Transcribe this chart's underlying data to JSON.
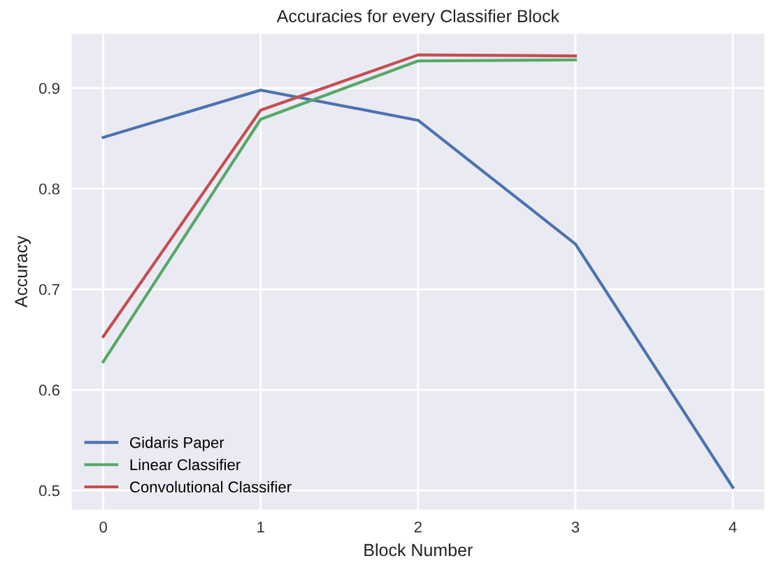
{
  "chart_data": {
    "type": "line",
    "title": "Accuracies for every Classifier Block",
    "xlabel": "Block Number",
    "ylabel": "Accuracy",
    "xlim": [
      -0.2,
      4.2
    ],
    "xticks": [
      0,
      1,
      2,
      3,
      4
    ],
    "ylim": [
      0.481,
      0.954
    ],
    "yticks": [
      0.5,
      0.6,
      0.7,
      0.8,
      0.9
    ],
    "grid": true,
    "legend": "bottom left",
    "marker": "none",
    "line_style": "solid",
    "series": [
      {
        "name": "Gidaris Paper",
        "color": "#4c72b0",
        "x": [
          0,
          1,
          2,
          3,
          4
        ],
        "values": [
          0.851,
          0.898,
          0.868,
          0.745,
          0.503
        ]
      },
      {
        "name": "Linear Classifier",
        "color": "#55a868",
        "x": [
          0,
          1,
          2,
          3
        ],
        "values": [
          0.628,
          0.869,
          0.927,
          0.928
        ]
      },
      {
        "name": "Convolutional Classifier",
        "color": "#c44e52",
        "x": [
          0,
          1,
          2,
          3
        ],
        "values": [
          0.653,
          0.878,
          0.933,
          0.932
        ]
      }
    ]
  }
}
